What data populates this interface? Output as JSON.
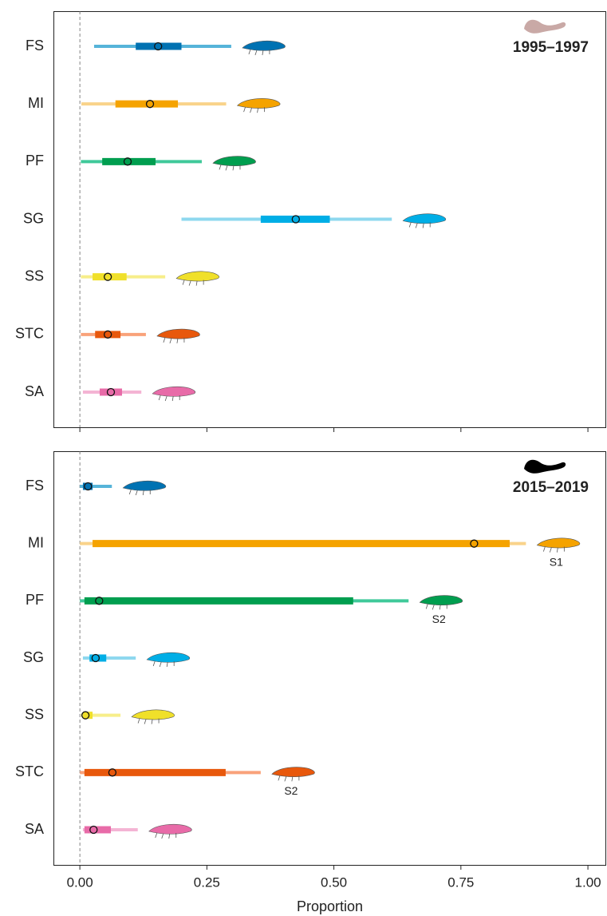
{
  "chart_data": [
    {
      "type": "interval",
      "title": "1995–1997",
      "categories": [
        "FS",
        "MI",
        "PF",
        "SG",
        "SS",
        "STC",
        "SA"
      ],
      "values": [
        0.154,
        0.138,
        0.094,
        0.425,
        0.055,
        0.055,
        0.061
      ],
      "inner_low": [
        0.11,
        0.07,
        0.044,
        0.356,
        0.025,
        0.03,
        0.039
      ],
      "inner_high": [
        0.2,
        0.193,
        0.149,
        0.492,
        0.092,
        0.08,
        0.083
      ],
      "outer_low": [
        0.028,
        0.003,
        0.002,
        0.2,
        0.002,
        0.002,
        0.006
      ],
      "outer_high": [
        0.298,
        0.288,
        0.24,
        0.614,
        0.168,
        0.13,
        0.121
      ],
      "colors": [
        "#0072b2",
        "#f5a300",
        "#009e4f",
        "#00aee6",
        "#f0e02a",
        "#e8580c",
        "#e86ba8"
      ],
      "light_colors": [
        "#56b4d9",
        "#f9d38a",
        "#40c99a",
        "#8ed8ef",
        "#f7ee8a",
        "#f9a27a",
        "#f4b4d4"
      ],
      "notes": [
        null,
        null,
        null,
        null,
        null,
        null,
        null
      ],
      "icon_color": "#c9a9a6",
      "xlim": [
        -0.052,
        1.036
      ],
      "xticks": [
        0,
        0.25,
        0.5,
        0.75,
        1
      ]
    },
    {
      "type": "interval",
      "title": "2015–2019",
      "categories": [
        "FS",
        "MI",
        "PF",
        "SG",
        "SS",
        "STC",
        "SA"
      ],
      "values": [
        0.016,
        0.776,
        0.038,
        0.031,
        0.011,
        0.064,
        0.027
      ],
      "inner_low": [
        0.006,
        0.025,
        0.009,
        0.019,
        0.006,
        0.009,
        0.009
      ],
      "inner_high": [
        0.025,
        0.846,
        0.538,
        0.052,
        0.025,
        0.287,
        0.061
      ],
      "outer_low": [
        0,
        0,
        0,
        0.006,
        0.002,
        0,
        0.006
      ],
      "outer_high": [
        0.063,
        0.878,
        0.647,
        0.11,
        0.08,
        0.356,
        0.114
      ],
      "colors": [
        "#0072b2",
        "#f5a300",
        "#009e4f",
        "#00aee6",
        "#f0e02a",
        "#e8580c",
        "#e86ba8"
      ],
      "light_colors": [
        "#56b4d9",
        "#f9d38a",
        "#40c99a",
        "#8ed8ef",
        "#f7ee8a",
        "#f9a27a",
        "#f4b4d4"
      ],
      "notes": [
        null,
        "S1",
        "S2",
        null,
        null,
        "S2",
        null
      ],
      "icon_color": "#000000",
      "xlim": [
        -0.052,
        1.036
      ],
      "xticks": [
        {
          "value": 0,
          "label": "0.00"
        },
        {
          "value": 0.25,
          "label": "0.25"
        },
        {
          "value": 0.5,
          "label": "0.50"
        },
        {
          "value": 0.75,
          "label": "0.75"
        },
        {
          "value": 1,
          "label": "1.00"
        }
      ],
      "x_label": "Proportion"
    }
  ]
}
